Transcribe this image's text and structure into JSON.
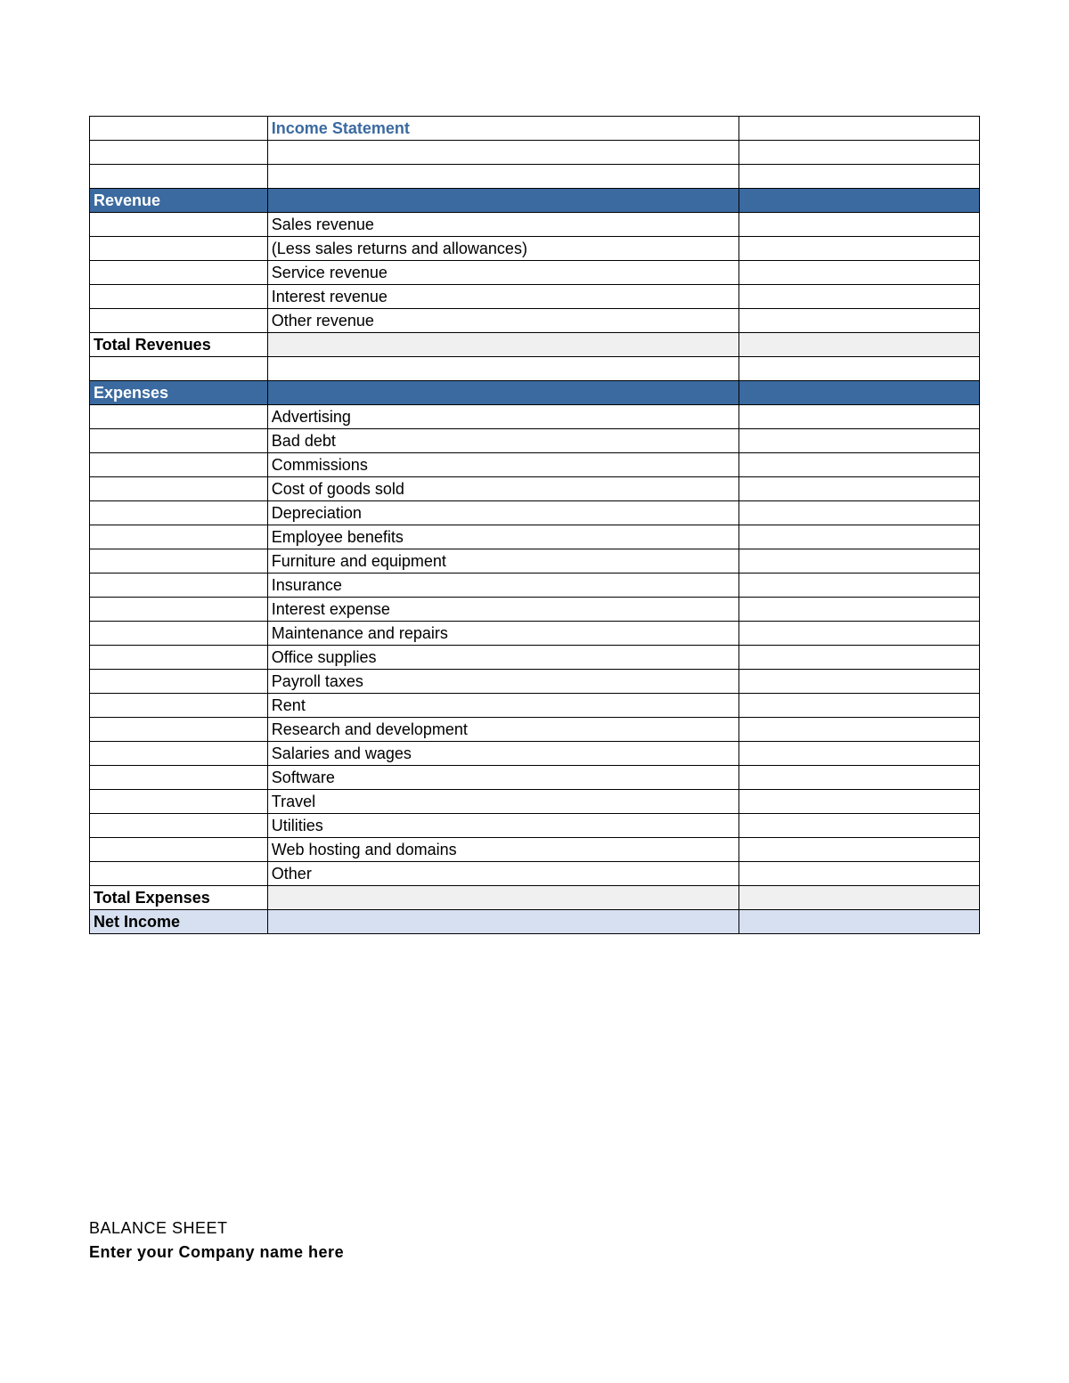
{
  "title": "Income Statement",
  "colors": {
    "header_bg": "#3b6aa0",
    "header_text": "#ffffff",
    "title_text": "#3b6aa0",
    "border": "#000000",
    "total_bg": "#f0f0f0",
    "net_bg": "#d6e0f0",
    "page_bg": "#ffffff"
  },
  "typography": {
    "title_fontsize": 28,
    "section_fontsize": 22,
    "body_fontsize": 18,
    "label_fontsize": 19,
    "font_family": "Arial"
  },
  "layout": {
    "columns": [
      "label",
      "description",
      "amount"
    ],
    "column_widths_pct": [
      20,
      53,
      27
    ]
  },
  "sections": {
    "revenue": {
      "header": "Revenue",
      "items": [
        "Sales revenue",
        "(Less sales returns and allowances)",
        "Service revenue",
        "Interest revenue",
        "Other revenue"
      ],
      "total_label": "Total Revenues"
    },
    "expenses": {
      "header": "Expenses",
      "items": [
        "Advertising",
        "Bad debt",
        "Commissions",
        "Cost of goods sold",
        "Depreciation",
        "Employee benefits",
        "Furniture and equipment",
        "Insurance",
        "Interest expense",
        "Maintenance and repairs",
        "Office supplies",
        "Payroll taxes",
        "Rent",
        "Research and development",
        "Salaries and wages",
        "Software",
        "Travel",
        "Utilities",
        "Web hosting and domains",
        "Other"
      ],
      "total_label": "Total Expenses"
    },
    "net_label": "Net Income"
  },
  "footer": {
    "line1": "BALANCE SHEET",
    "line2": "Enter your Company name here"
  }
}
